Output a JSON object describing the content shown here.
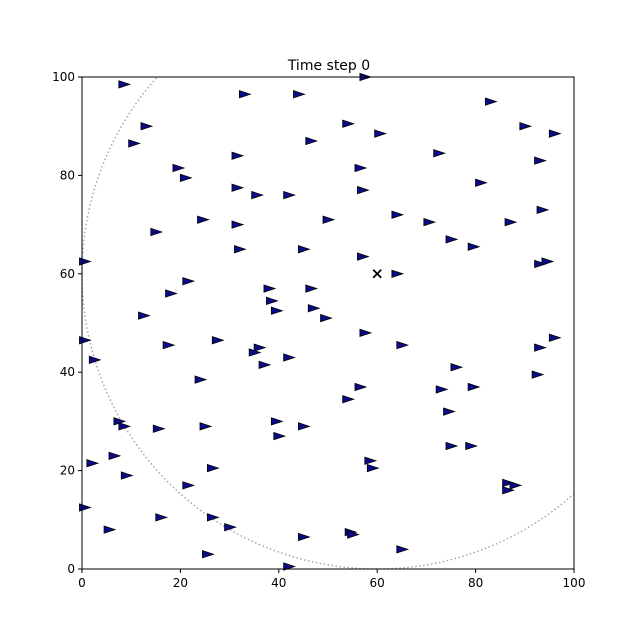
{
  "chart_data": {
    "type": "scatter",
    "title": "Time step 0",
    "xlabel": "",
    "ylabel": "",
    "xlim": [
      0,
      100
    ],
    "ylim": [
      0,
      100
    ],
    "xticks": [
      "0",
      "20",
      "40",
      "60",
      "80",
      "100"
    ],
    "yticks": [
      "0",
      "20",
      "40",
      "60",
      "80",
      "100"
    ],
    "grid": false,
    "legend": "none",
    "marker_shape": "right-pointing-triangle",
    "marker_color": "#0b0b8a",
    "marker_edge_color": "#000000",
    "target": {
      "x": 60,
      "y": 60,
      "marker": "x",
      "color": "#000000"
    },
    "boundary_circle": {
      "center": [
        60,
        60
      ],
      "radius": 60,
      "style": "dotted",
      "color": "#a0a0a8"
    },
    "points": [
      {
        "x": 8.5,
        "y": 98.5
      },
      {
        "x": 33,
        "y": 96.5
      },
      {
        "x": 44,
        "y": 96.5
      },
      {
        "x": 57.5,
        "y": 100
      },
      {
        "x": 83,
        "y": 95
      },
      {
        "x": 13,
        "y": 90
      },
      {
        "x": 54,
        "y": 90.5
      },
      {
        "x": 60.5,
        "y": 88.5
      },
      {
        "x": 90,
        "y": 90
      },
      {
        "x": 96,
        "y": 88.5
      },
      {
        "x": 10.5,
        "y": 86.5
      },
      {
        "x": 46.5,
        "y": 87
      },
      {
        "x": 19.5,
        "y": 81.5
      },
      {
        "x": 31.5,
        "y": 84
      },
      {
        "x": 72.5,
        "y": 84.5
      },
      {
        "x": 93,
        "y": 83
      },
      {
        "x": 21,
        "y": 79.5
      },
      {
        "x": 56.5,
        "y": 81.5
      },
      {
        "x": 81,
        "y": 78.5
      },
      {
        "x": 31.5,
        "y": 77.5
      },
      {
        "x": 57,
        "y": 77
      },
      {
        "x": 35.5,
        "y": 76
      },
      {
        "x": 42,
        "y": 76
      },
      {
        "x": 93.5,
        "y": 73
      },
      {
        "x": 24.5,
        "y": 71
      },
      {
        "x": 50,
        "y": 71
      },
      {
        "x": 64,
        "y": 72
      },
      {
        "x": 70.5,
        "y": 70.5
      },
      {
        "x": 87,
        "y": 70.5
      },
      {
        "x": 15,
        "y": 68.5
      },
      {
        "x": 31.5,
        "y": 70
      },
      {
        "x": 75,
        "y": 67
      },
      {
        "x": 32,
        "y": 65
      },
      {
        "x": 45,
        "y": 65
      },
      {
        "x": 79.5,
        "y": 65.5
      },
      {
        "x": 57,
        "y": 63.5
      },
      {
        "x": 93,
        "y": 62
      },
      {
        "x": 94.5,
        "y": 62.5
      },
      {
        "x": 0.5,
        "y": 62.5
      },
      {
        "x": 64,
        "y": 60
      },
      {
        "x": 21.5,
        "y": 58.5
      },
      {
        "x": 38,
        "y": 57
      },
      {
        "x": 46.5,
        "y": 57
      },
      {
        "x": 18,
        "y": 56
      },
      {
        "x": 38.5,
        "y": 54.5
      },
      {
        "x": 47,
        "y": 53
      },
      {
        "x": 39.5,
        "y": 52.5
      },
      {
        "x": 12.5,
        "y": 51.5
      },
      {
        "x": 49.5,
        "y": 51
      },
      {
        "x": 57.5,
        "y": 48
      },
      {
        "x": 0.5,
        "y": 46.5
      },
      {
        "x": 17.5,
        "y": 45.5
      },
      {
        "x": 27.5,
        "y": 46.5
      },
      {
        "x": 36,
        "y": 45
      },
      {
        "x": 65,
        "y": 45.5
      },
      {
        "x": 93,
        "y": 45
      },
      {
        "x": 96,
        "y": 47
      },
      {
        "x": 35,
        "y": 44
      },
      {
        "x": 2.5,
        "y": 42.5
      },
      {
        "x": 42,
        "y": 43
      },
      {
        "x": 37,
        "y": 41.5
      },
      {
        "x": 76,
        "y": 41
      },
      {
        "x": 24,
        "y": 38.5
      },
      {
        "x": 92.5,
        "y": 39.5
      },
      {
        "x": 56.5,
        "y": 37
      },
      {
        "x": 73,
        "y": 36.5
      },
      {
        "x": 79.5,
        "y": 37
      },
      {
        "x": 54,
        "y": 34.5
      },
      {
        "x": 74.5,
        "y": 32
      },
      {
        "x": 7.5,
        "y": 30
      },
      {
        "x": 8.5,
        "y": 29
      },
      {
        "x": 15.5,
        "y": 28.5
      },
      {
        "x": 25,
        "y": 29
      },
      {
        "x": 39.5,
        "y": 30
      },
      {
        "x": 45,
        "y": 29
      },
      {
        "x": 40,
        "y": 27
      },
      {
        "x": 75,
        "y": 25
      },
      {
        "x": 79,
        "y": 25
      },
      {
        "x": 58.5,
        "y": 22
      },
      {
        "x": 2,
        "y": 21.5
      },
      {
        "x": 6.5,
        "y": 23
      },
      {
        "x": 59,
        "y": 20.5
      },
      {
        "x": 26.5,
        "y": 20.5
      },
      {
        "x": 9,
        "y": 19
      },
      {
        "x": 21.5,
        "y": 17
      },
      {
        "x": 86.5,
        "y": 17.5
      },
      {
        "x": 88,
        "y": 17
      },
      {
        "x": 86.5,
        "y": 16
      },
      {
        "x": 0.5,
        "y": 12.5
      },
      {
        "x": 16,
        "y": 10.5
      },
      {
        "x": 26.5,
        "y": 10.5
      },
      {
        "x": 30,
        "y": 8.5
      },
      {
        "x": 5.5,
        "y": 8
      },
      {
        "x": 54.5,
        "y": 7.5
      },
      {
        "x": 55,
        "y": 7
      },
      {
        "x": 45,
        "y": 6.5
      },
      {
        "x": 25.5,
        "y": 3
      },
      {
        "x": 65,
        "y": 4
      },
      {
        "x": 42,
        "y": 0.5
      }
    ]
  }
}
